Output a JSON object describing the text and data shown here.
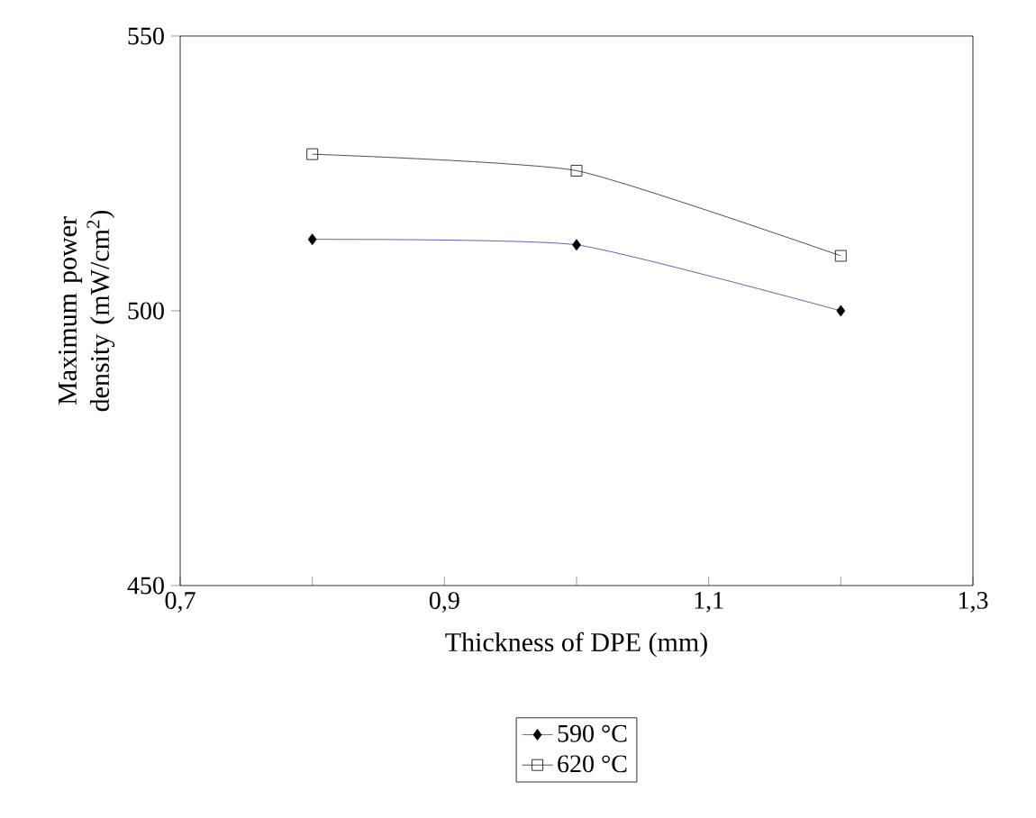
{
  "chart_data": {
    "type": "line",
    "xlabel": "Thickness of DPE (mm)",
    "ylabel": "Maximum power density (mW/cm$^{2}$)",
    "xlim": [
      0.7,
      1.3
    ],
    "xticks": [
      {
        "value": 0.7,
        "label": "0,7"
      },
      {
        "value": 0.8,
        "label": null
      },
      {
        "value": 0.9,
        "label": "0,9"
      },
      {
        "value": 1.0,
        "label": null
      },
      {
        "value": 1.1,
        "label": "1,1"
      },
      {
        "value": 1.2,
        "label": null
      },
      {
        "value": 1.3,
        "label": "1,3"
      }
    ],
    "ylim": [
      450,
      550
    ],
    "yticks": [
      450,
      500,
      550
    ],
    "grid": false,
    "legend": "bottom",
    "line_style": "solid",
    "x": [
      0.8,
      1.0,
      1.2
    ],
    "series": [
      {
        "name": "590 °C",
        "color": "#3b3b9c",
        "marker": "diamond",
        "values": [
          513,
          512,
          500
        ]
      },
      {
        "name": "620 °C",
        "color": "#222222",
        "marker": "square",
        "values": [
          528.5,
          525.5,
          510
        ]
      }
    ]
  }
}
